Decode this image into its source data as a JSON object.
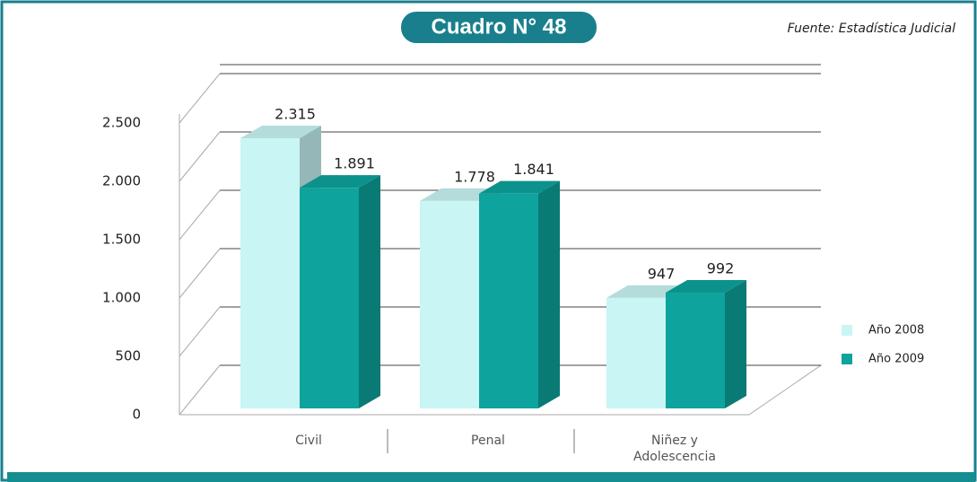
{
  "title": "Cuadro N° 48",
  "source": "Fuente: Estadística Judicial",
  "chart_data": {
    "type": "bar3d",
    "categories": [
      "Civil",
      "Penal",
      "Niñez y Adolescencia"
    ],
    "series": [
      {
        "name": "Año 2008",
        "color": "#c9f5f4",
        "values": [
          2315,
          1778,
          947
        ],
        "value_labels": [
          "2.315",
          "1.778",
          "947"
        ]
      },
      {
        "name": "Año 2009",
        "color": "#0ea39c",
        "values": [
          1891,
          1841,
          992
        ],
        "value_labels": [
          "1.891",
          "1.841",
          "992"
        ]
      }
    ],
    "ylim": [
      0,
      3000
    ],
    "yticks": [
      0,
      500,
      {
        "value": 1000,
        "label": "1.000"
      },
      {
        "value": 1500,
        "label": "1.500"
      },
      {
        "value": 2000,
        "label": "2.000"
      },
      {
        "value": 2500,
        "label": "2.500"
      }
    ],
    "grid": true,
    "legend": "right"
  }
}
